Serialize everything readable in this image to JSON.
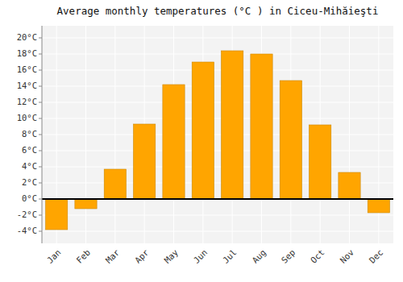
{
  "chart_data": {
    "type": "bar",
    "title": "Average monthly temperatures (°C ) in Ciceu-Mihăieşti",
    "categories": [
      "Jan",
      "Feb",
      "Mar",
      "Apr",
      "May",
      "Jun",
      "Jul",
      "Aug",
      "Sep",
      "Oct",
      "Nov",
      "Dec"
    ],
    "values": [
      -3.8,
      -1.2,
      3.7,
      9.3,
      14.2,
      17.0,
      18.4,
      18.0,
      14.7,
      9.2,
      3.3,
      -1.7
    ],
    "color": "#FFA500",
    "ylim": [
      -5.5,
      21.5
    ],
    "yticks": [
      {
        "value": -4,
        "label": "-4°C"
      },
      {
        "value": -2,
        "label": "-2°C"
      },
      {
        "value": 0,
        "label": "0°C"
      },
      {
        "value": 2,
        "label": "2°C"
      },
      {
        "value": 4,
        "label": "4°C"
      },
      {
        "value": 6,
        "label": "6°C"
      },
      {
        "value": 8,
        "label": "8°C"
      },
      {
        "value": 10,
        "label": "10°C"
      },
      {
        "value": 12,
        "label": "12°C"
      },
      {
        "value": 14,
        "label": "14°C"
      },
      {
        "value": 16,
        "label": "16°C"
      },
      {
        "value": 18,
        "label": "18°C"
      },
      {
        "value": 20,
        "label": "20°C"
      }
    ],
    "grid": true
  }
}
